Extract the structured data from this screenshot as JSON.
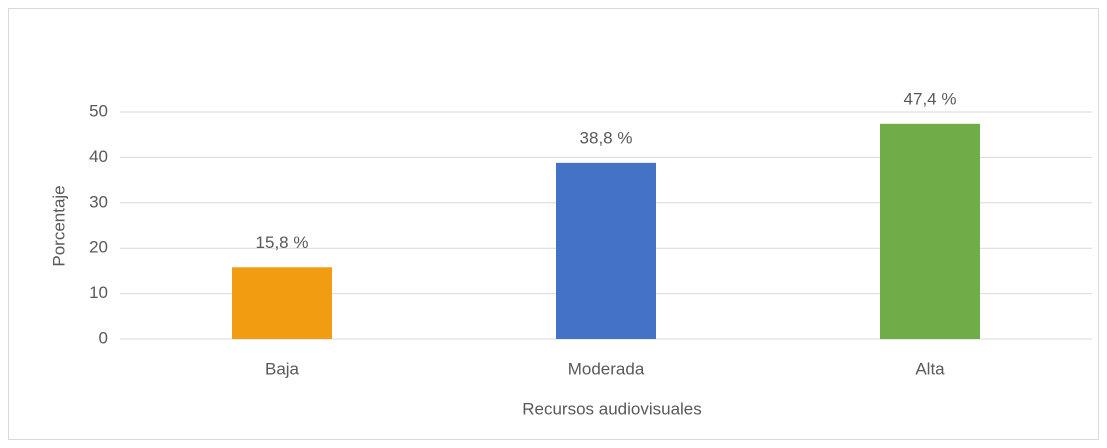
{
  "chart_data": {
    "type": "bar",
    "categories": [
      "Baja",
      "Moderada",
      "Alta"
    ],
    "values": [
      15.8,
      38.8,
      47.4
    ],
    "value_labels": [
      "15,8 %",
      "38,8 %",
      "47,4 %"
    ],
    "colors": [
      "#f29c12",
      "#4472c4",
      "#70ad47"
    ],
    "xlabel": "Recursos audiovisuales",
    "ylabel": "Porcentaje",
    "ylim": [
      0,
      50
    ],
    "yticks": [
      0,
      10,
      20,
      30,
      40,
      50
    ],
    "grid": true
  }
}
